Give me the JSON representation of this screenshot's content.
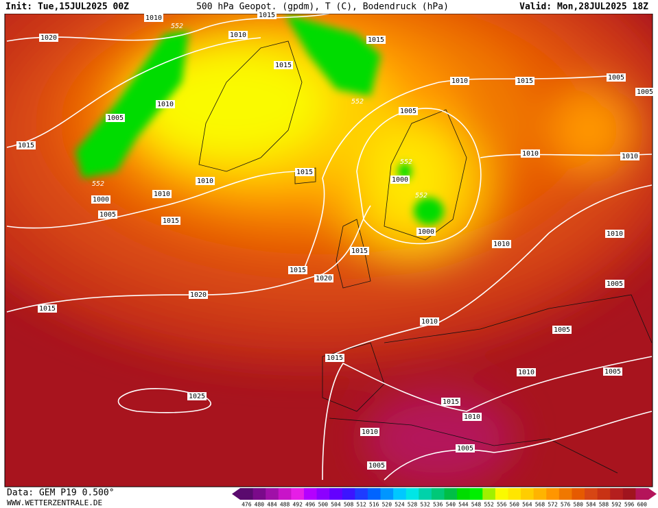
{
  "header": {
    "init": "Init: Tue,15JUL2025 00Z",
    "title": "500 hPa Geopot. (gpdm), T (C), Bodendruck (hPa)",
    "valid": "Valid: Mon,28JUL2025 18Z"
  },
  "footer": {
    "data": "Data: GEM P19 0.500°",
    "site": "WWW.WETTERZENTRALE.DE"
  },
  "isobar_labels": [
    "1010",
    "1015",
    "1010",
    "1020",
    "1015",
    "1015",
    "1010",
    "1015",
    "1005",
    "1005",
    "1010",
    "1005",
    "1005",
    "1015",
    "1010",
    "1010",
    "1015",
    "1010",
    "1000",
    "1010",
    "1000",
    "1005",
    "1015",
    "1000",
    "1010",
    "1010",
    "1015",
    "1015",
    "1020",
    "1005",
    "1020",
    "1015",
    "1010",
    "1005",
    "1015",
    "1010",
    "1005",
    "1025",
    "1015",
    "1010",
    "1010",
    "1005",
    "1005"
  ],
  "geopotential_labels": [
    "552",
    "552",
    "552",
    "552",
    "552"
  ],
  "colorbar": {
    "labels": [
      476,
      480,
      484,
      488,
      492,
      496,
      500,
      504,
      508,
      512,
      516,
      520,
      524,
      528,
      532,
      536,
      540,
      544,
      548,
      552,
      556,
      560,
      564,
      568,
      572,
      576,
      580,
      584,
      588,
      592,
      596,
      600
    ],
    "colors": [
      "#5a0a6e",
      "#7a0a8a",
      "#a010a8",
      "#c814c8",
      "#e61ee6",
      "#b400ff",
      "#8c00ff",
      "#6400ff",
      "#3c14ff",
      "#1e3cff",
      "#0064ff",
      "#0096ff",
      "#00c8ff",
      "#00e6e6",
      "#00d2aa",
      "#00c878",
      "#00be46",
      "#00dc00",
      "#00f000",
      "#a0f000",
      "#fafa00",
      "#ffe600",
      "#ffcd00",
      "#ffb400",
      "#ff9600",
      "#f07800",
      "#e65a00",
      "#d74614",
      "#c83214",
      "#b41e1e",
      "#a0141e",
      "#b4145a"
    ]
  }
}
